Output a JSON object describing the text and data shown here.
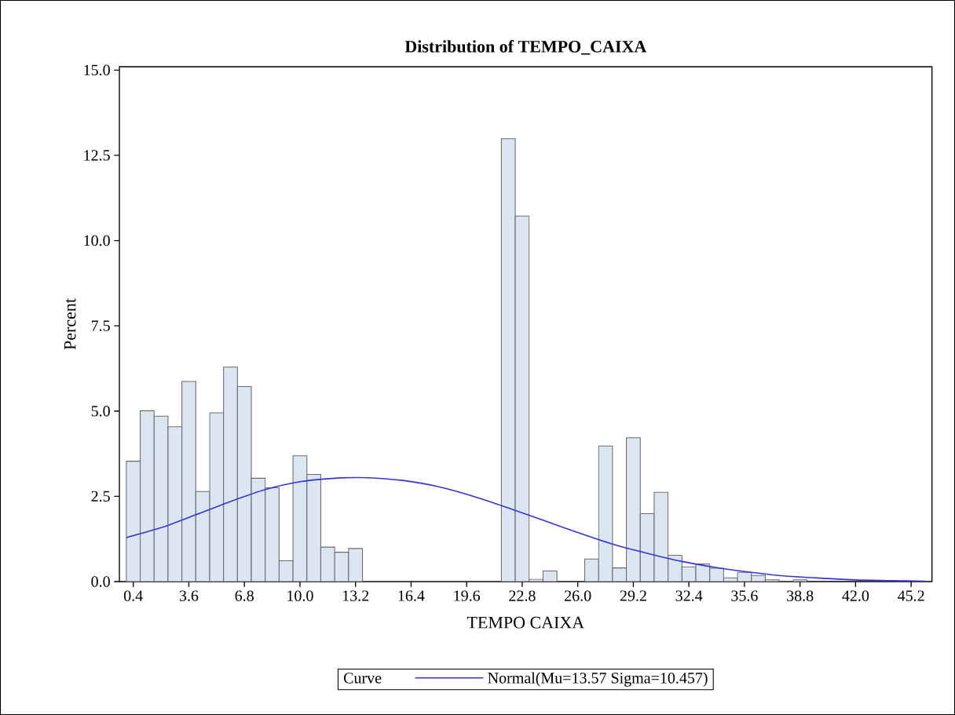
{
  "chart_data": {
    "type": "histogram",
    "title": "Distribution of TEMPO_CAIXA",
    "xlabel": "TEMPO CAIXA",
    "ylabel": "Percent",
    "legend_title": "Curve",
    "legend": "bottom",
    "bins": [
      0,
      0.8,
      1.6,
      2.4,
      3.2,
      4.0,
      4.8,
      5.6,
      6.4,
      7.2,
      8.0,
      8.8,
      9.6,
      10.4,
      11.2,
      12.0,
      12.8,
      13.6,
      14.4,
      15.2,
      16.0,
      16.8,
      17.6,
      18.4,
      19.2,
      20.0,
      20.8,
      21.6,
      22.4,
      23.2,
      24.0,
      24.8,
      25.6,
      26.4,
      27.2,
      28.0,
      28.8,
      29.6,
      30.4,
      31.2,
      32.0,
      32.8,
      33.6,
      34.4,
      35.2,
      36.0,
      36.8,
      37.6,
      38.4,
      39.2
    ],
    "series": [
      {
        "color": "#dce6f2",
        "values": [
          3.53,
          5.01,
          4.85,
          4.54,
          5.87,
          2.64,
          4.95,
          6.29,
          5.72,
          3.03,
          2.75,
          0.61,
          3.69,
          3.14,
          1.01,
          0.86,
          0.97,
          0,
          0,
          0,
          0,
          0,
          0,
          0,
          0,
          0,
          0,
          12.99,
          10.72,
          0.07,
          0.31,
          0,
          0,
          0.66,
          3.98,
          0.4,
          4.22,
          1.99,
          2.62,
          0.77,
          0.43,
          0.52,
          0.39,
          0.11,
          0.27,
          0.18,
          0.05,
          0,
          0.05
        ]
      },
      {
        "type": "line",
        "name": "Normal(Mu=13.57 Sigma=10.457)",
        "color": "#3333dd",
        "x": [
          0,
          2,
          4,
          6,
          8,
          10,
          12,
          13.6,
          16,
          18,
          20,
          22,
          24,
          26,
          28,
          30,
          32,
          34,
          36,
          38,
          40,
          42,
          44,
          46
        ],
        "values": [
          1.29,
          1.58,
          1.96,
          2.35,
          2.7,
          2.93,
          3.03,
          3.05,
          2.96,
          2.78,
          2.5,
          2.16,
          1.8,
          1.44,
          1.1,
          0.83,
          0.59,
          0.41,
          0.27,
          0.16,
          0.1,
          0.05,
          0.03,
          0.01
        ]
      }
    ],
    "xlim": [
      -0.4,
      46.4
    ],
    "ylim": [
      0,
      15.1
    ],
    "xticks": [
      0.4,
      3.6,
      6.8,
      {
        "value": 10,
        "label": "10.0"
      },
      13.2,
      16.4,
      19.6,
      22.8,
      {
        "value": 26,
        "label": "26.0"
      },
      29.2,
      32.4,
      35.6,
      38.8,
      {
        "value": 42,
        "label": "42.0"
      },
      45.2
    ],
    "yticks": [
      {
        "value": 0,
        "label": "0.0"
      },
      2.5,
      {
        "value": 5,
        "label": "5.0"
      },
      7.5,
      {
        "value": 10,
        "label": "10.0"
      },
      12.5,
      {
        "value": 15,
        "label": "15.0"
      }
    ]
  }
}
